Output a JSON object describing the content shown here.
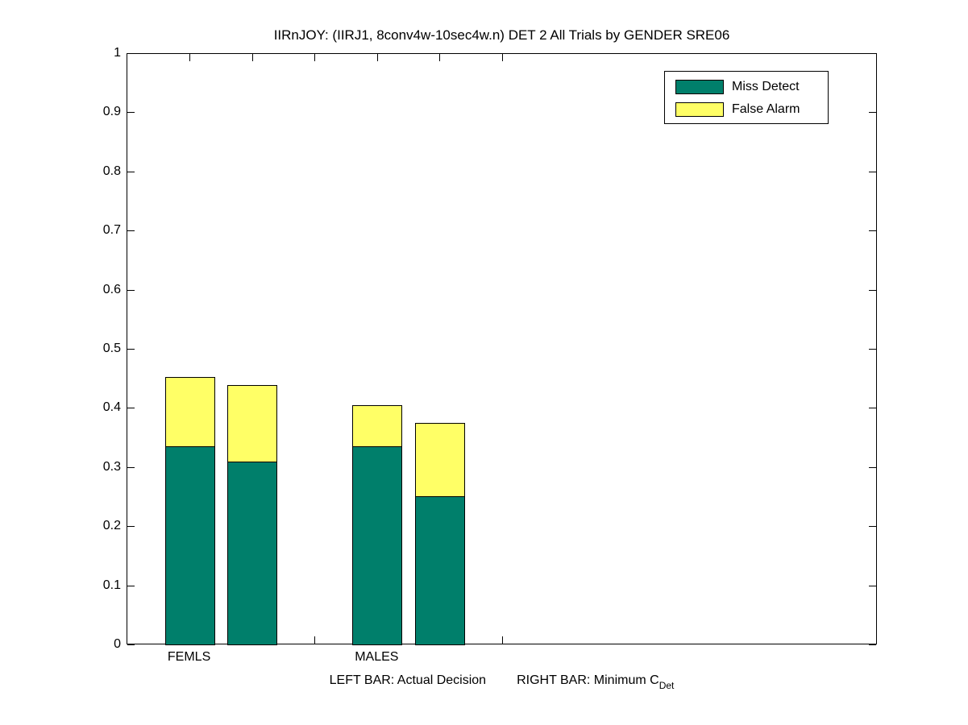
{
  "chart_data": {
    "type": "bar",
    "stacked": true,
    "title": "IIRnJOY: (IIRJ1, 8conv4w-10sec4w.n) DET 2 All Trials by GENDER SRE06",
    "xlabel_left": "LEFT BAR: Actual Decision",
    "xlabel_right": "RIGHT BAR: Minimum C",
    "xlabel_subscript": "Det",
    "ylim": [
      0,
      1
    ],
    "xlim": [
      0,
      12
    ],
    "grid": false,
    "legend_position": "top-right",
    "background_color": "#ffffff",
    "axis_color": "#000000",
    "bar_width_fraction": 0.8,
    "yticks": [
      {
        "value": 0,
        "label": "0"
      },
      {
        "value": 0.1,
        "label": "0.1"
      },
      {
        "value": 0.2,
        "label": "0.2"
      },
      {
        "value": 0.3,
        "label": "0.3"
      },
      {
        "value": 0.4,
        "label": "0.4"
      },
      {
        "value": 0.5,
        "label": "0.5"
      },
      {
        "value": 0.6,
        "label": "0.6"
      },
      {
        "value": 0.7,
        "label": "0.7"
      },
      {
        "value": 0.8,
        "label": "0.8"
      },
      {
        "value": 0.9,
        "label": "0.9"
      },
      {
        "value": 1,
        "label": "1"
      }
    ],
    "xticks": [
      {
        "position": 1,
        "label": "FEMLS"
      },
      {
        "position": 2,
        "label": ""
      },
      {
        "position": 3,
        "label": ""
      },
      {
        "position": 4,
        "label": "MALES"
      },
      {
        "position": 5,
        "label": ""
      },
      {
        "position": 6,
        "label": ""
      }
    ],
    "series": [
      {
        "name": "Miss Detect",
        "color": "#007f6b"
      },
      {
        "name": "False Alarm",
        "color": "#ffff66"
      }
    ],
    "bars": [
      {
        "group": "FEMLS",
        "bar": "Actual Decision",
        "position": 1,
        "miss_detect": 0.337,
        "false_alarm": 0.116,
        "total": 0.453
      },
      {
        "group": "FEMLS",
        "bar": "Minimum CDet",
        "position": 2,
        "miss_detect": 0.311,
        "false_alarm": 0.129,
        "total": 0.44
      },
      {
        "group": "MALES",
        "bar": "Actual Decision",
        "position": 4,
        "miss_detect": 0.336,
        "false_alarm": 0.07,
        "total": 0.406
      },
      {
        "group": "MALES",
        "bar": "Minimum CDet",
        "position": 5,
        "miss_detect": 0.252,
        "false_alarm": 0.124,
        "total": 0.376
      }
    ]
  }
}
